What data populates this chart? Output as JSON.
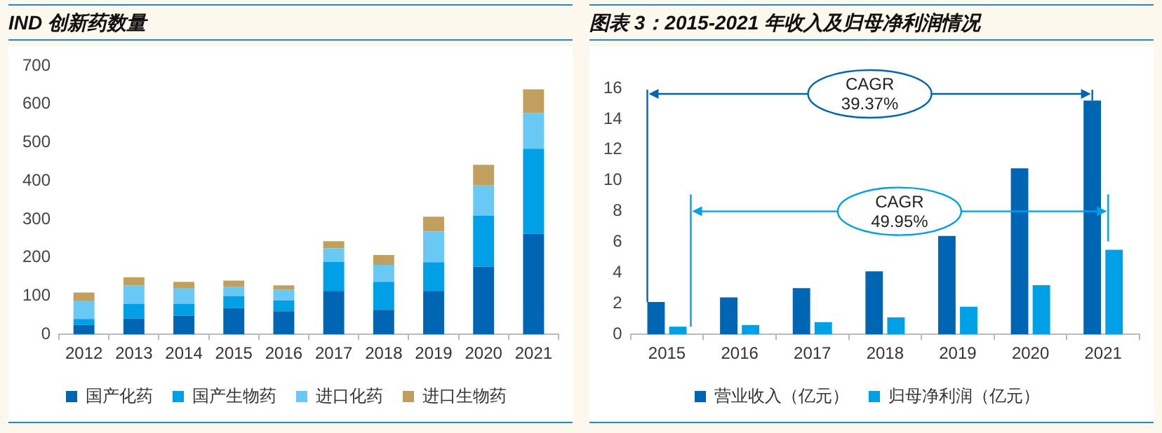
{
  "chart_data": [
    {
      "type": "bar",
      "title": "IND 创新药数量",
      "categories": [
        "2012",
        "2013",
        "2014",
        "2015",
        "2016",
        "2017",
        "2018",
        "2019",
        "2020",
        "2021"
      ],
      "stacked": true,
      "ylim": [
        0,
        700
      ],
      "yticks": [
        0,
        100,
        200,
        300,
        400,
        500,
        600,
        700
      ],
      "legend": "bottom",
      "series": [
        {
          "name": "国产化药",
          "color": "#0066b3",
          "values": [
            25,
            41,
            49,
            69,
            60,
            113,
            64,
            113,
            176,
            262
          ]
        },
        {
          "name": "国产生物药",
          "color": "#00a0e6",
          "values": [
            15,
            39,
            31,
            31,
            28,
            76,
            73,
            75,
            133,
            222
          ]
        },
        {
          "name": "进口化药",
          "color": "#6ac8f5",
          "values": [
            48,
            48,
            41,
            23,
            28,
            35,
            44,
            80,
            79,
            93
          ]
        },
        {
          "name": "进口生物药",
          "color": "#c19f5e",
          "values": [
            21,
            21,
            16,
            17,
            12,
            19,
            26,
            39,
            54,
            62
          ]
        }
      ]
    },
    {
      "type": "bar",
      "title": "图表 3：2015-2021 年收入及归母净利润情况",
      "categories": [
        "2015",
        "2016",
        "2017",
        "2018",
        "2019",
        "2020",
        "2021"
      ],
      "ylim": [
        0,
        16
      ],
      "yticks": [
        0,
        2,
        4,
        6,
        8,
        10,
        12,
        14,
        16
      ],
      "legend": "bottom",
      "annotations": [
        "CAGR 39.37%",
        "CAGR 49.95%"
      ],
      "series": [
        {
          "name": "营业收入（亿元）",
          "color": "#0066b3",
          "values": [
            2.1,
            2.4,
            3.0,
            4.1,
            6.4,
            10.8,
            15.2
          ]
        },
        {
          "name": "归母净利润（亿元）",
          "color": "#00a0e6",
          "values": [
            0.5,
            0.6,
            0.8,
            1.1,
            1.8,
            3.2,
            5.5
          ]
        }
      ]
    }
  ]
}
